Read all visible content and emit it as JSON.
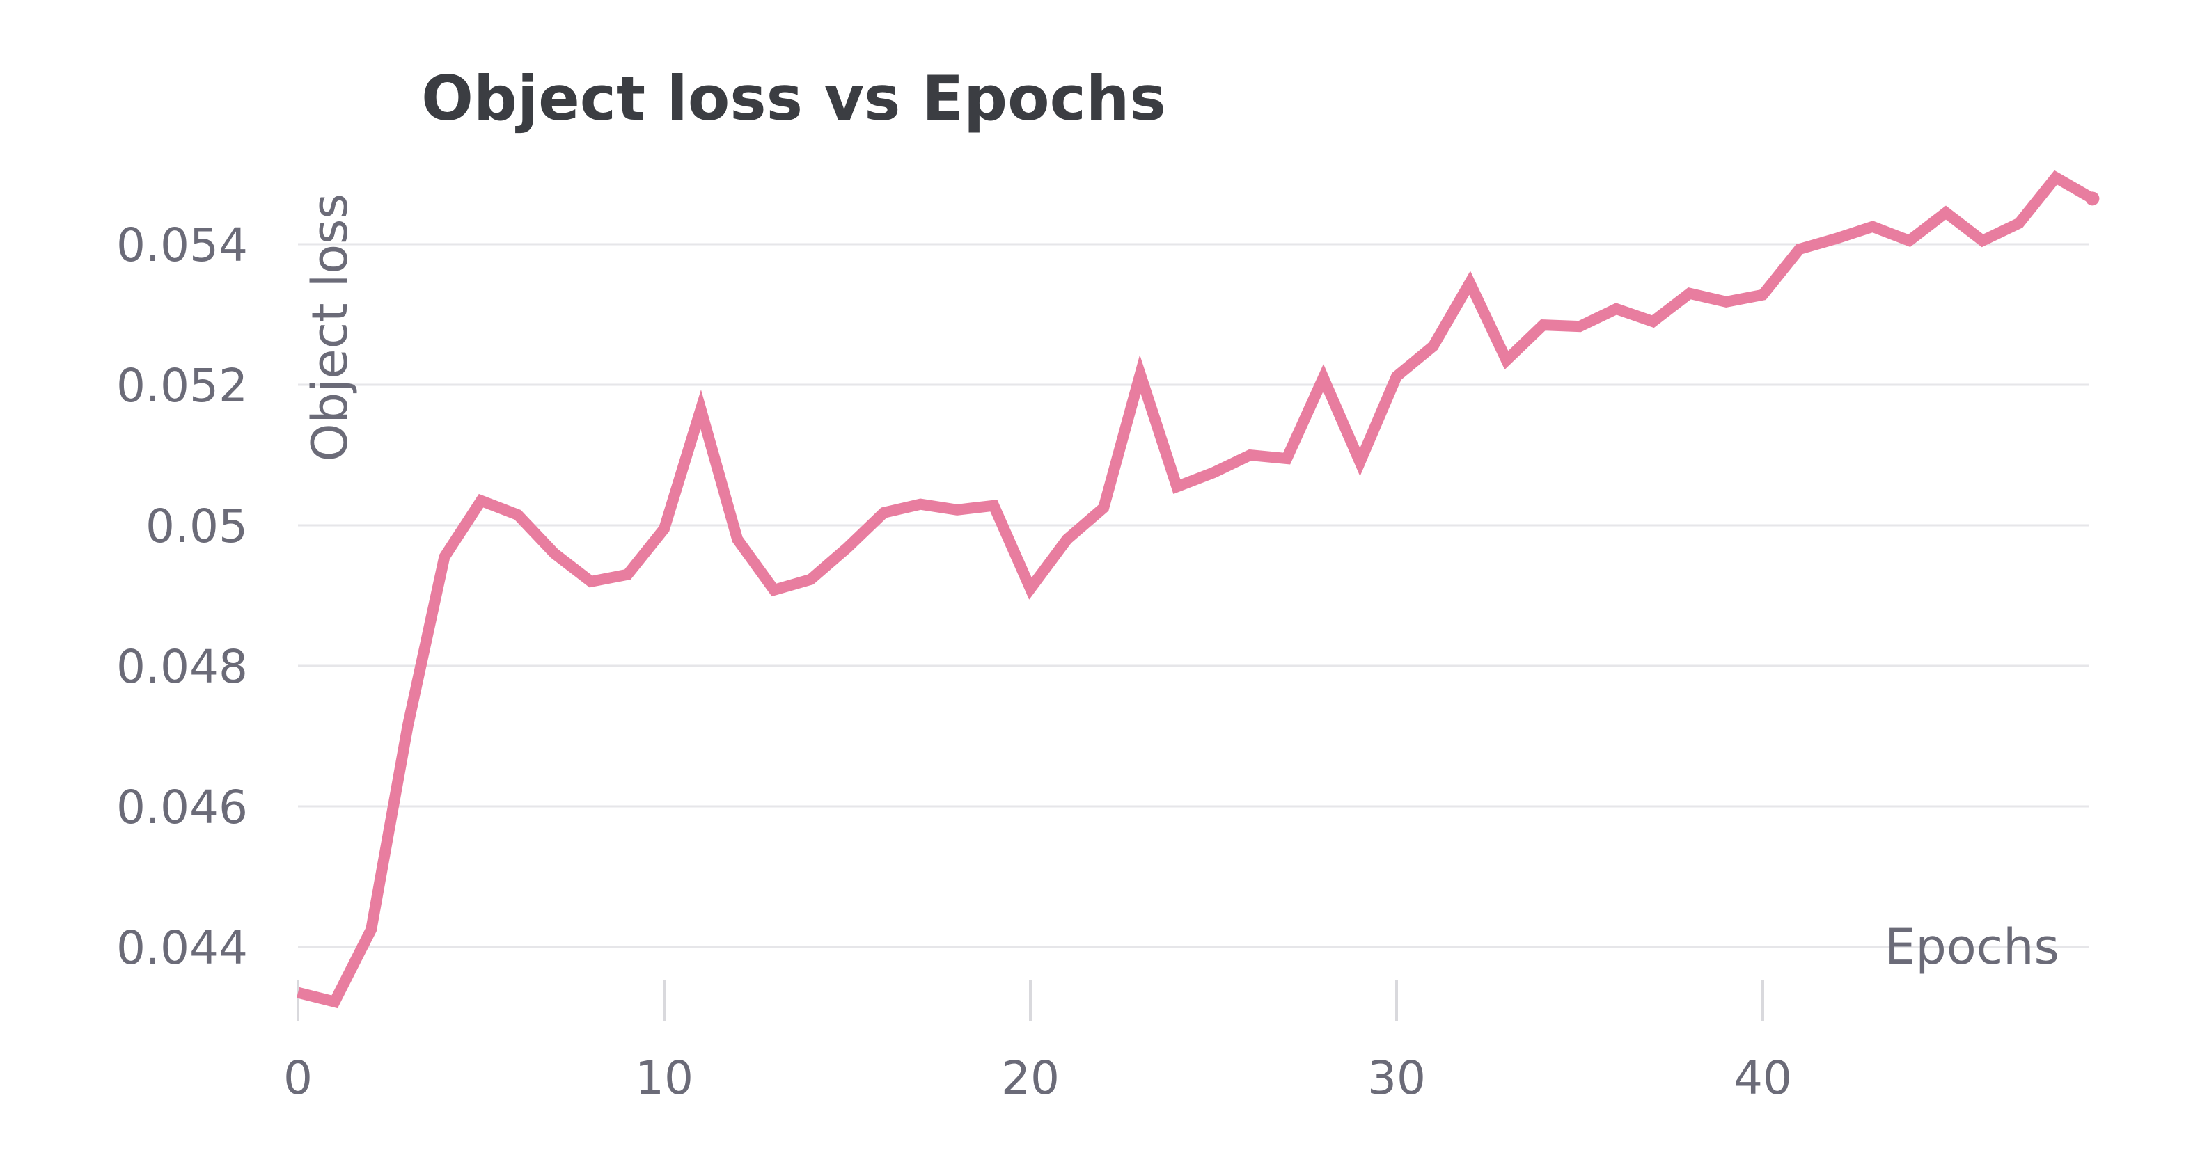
{
  "chart_data": {
    "type": "line",
    "title": "Object loss vs Epochs",
    "xlabel": "Epochs",
    "ylabel": "Object loss",
    "xlim": [
      0,
      49
    ],
    "ylim": [
      0.0433,
      0.0553
    ],
    "x_ticks": [
      0,
      10,
      20,
      30,
      40
    ],
    "x_tick_labels": [
      "0",
      "10",
      "20",
      "30",
      "40"
    ],
    "y_ticks": [
      0.044,
      0.046,
      0.048,
      0.05,
      0.052,
      0.054
    ],
    "y_tick_labels": [
      "0.044",
      "0.046",
      "0.048",
      "0.05",
      "0.052",
      "0.054"
    ],
    "grid": "horizontal",
    "legend": "none",
    "colors": {
      "series": "#e87d9f",
      "title": "#3b3d42",
      "text": "#6b6b78",
      "grid": "#e6e6e9"
    },
    "series": [
      {
        "x": [
          0,
          1,
          2,
          3,
          4,
          5,
          6,
          7,
          8,
          9,
          10,
          11,
          12,
          13,
          14,
          15,
          16,
          17,
          18,
          19,
          20,
          21,
          22,
          23,
          24,
          25,
          26,
          27,
          28,
          29,
          30,
          31,
          32,
          33,
          34,
          35,
          36,
          37,
          38,
          39,
          40,
          41,
          42,
          43,
          44,
          45,
          46,
          47,
          48,
          49
        ],
        "values": [
          0.04335,
          0.04322,
          0.04425,
          0.04715,
          0.04955,
          0.05035,
          0.05015,
          0.0496,
          0.0492,
          0.0493,
          0.04995,
          0.05165,
          0.0498,
          0.04908,
          0.04923,
          0.04968,
          0.05018,
          0.0503,
          0.05022,
          0.05028,
          0.0491,
          0.0498,
          0.05025,
          0.05215,
          0.05055,
          0.05075,
          0.051,
          0.05095,
          0.0521,
          0.0509,
          0.05212,
          0.05255,
          0.05345,
          0.05235,
          0.05285,
          0.05283,
          0.05308,
          0.0529,
          0.0533,
          0.05318,
          0.05328,
          0.05393,
          0.05408,
          0.05425,
          0.05405,
          0.05445,
          0.05405,
          0.0543,
          0.05495,
          0.05465
        ]
      }
    ]
  }
}
